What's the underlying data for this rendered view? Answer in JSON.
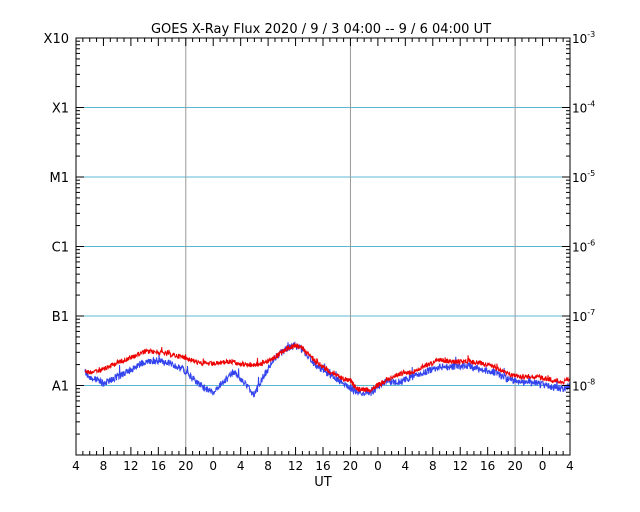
{
  "chart_data": {
    "type": "line",
    "title": "GOES X-Ray Flux   2020 / 9 / 3   04:00 --  9 / 6   04:00    UT",
    "xlabel": "UT",
    "ylabel": "",
    "x_start_hour": 4,
    "x_end_hour": 76,
    "x_tick_labels": [
      "4",
      "8",
      "12",
      "16",
      "20",
      "0",
      "4",
      "8",
      "12",
      "16",
      "20",
      "0",
      "4",
      "8",
      "12",
      "16",
      "20",
      "0",
      "4"
    ],
    "day_boundaries_hours": [
      20,
      44,
      68
    ],
    "y_scale": "log",
    "ylim": [
      1e-09,
      0.001
    ],
    "y_left_labels": [
      "X10",
      "X1",
      "M1",
      "C1",
      "B1",
      "A1"
    ],
    "y_right_labels": [
      {
        "base": "10",
        "exp": "-3"
      },
      {
        "base": "10",
        "exp": "-4"
      },
      {
        "base": "10",
        "exp": "-5"
      },
      {
        "base": "10",
        "exp": "-6"
      },
      {
        "base": "10",
        "exp": "-7"
      },
      {
        "base": "10",
        "exp": "-8"
      }
    ],
    "series": [
      {
        "name": "",
        "color": "#ee0000",
        "points": [
          [
            5.3,
            1.62e-08
          ],
          [
            6,
            1.55e-08
          ],
          [
            8,
            1.7e-08
          ],
          [
            10,
            2.14e-08
          ],
          [
            12,
            2.51e-08
          ],
          [
            14,
            3.09e-08
          ],
          [
            16,
            3.02e-08
          ],
          [
            18,
            2.75e-08
          ],
          [
            20,
            2.51e-08
          ],
          [
            22,
            2.09e-08
          ],
          [
            24,
            2.04e-08
          ],
          [
            26,
            2.19e-08
          ],
          [
            27,
            2.19e-08
          ],
          [
            29,
            1.95e-08
          ],
          [
            31,
            2.04e-08
          ],
          [
            33,
            2.57e-08
          ],
          [
            35,
            3.47e-08
          ],
          [
            36,
            3.72e-08
          ],
          [
            37,
            3.47e-08
          ],
          [
            39,
            2.19e-08
          ],
          [
            41,
            1.58e-08
          ],
          [
            43,
            1.23e-08
          ],
          [
            44,
            1.17e-08
          ],
          [
            45,
            8.9e-09
          ],
          [
            47,
            8.5e-09
          ],
          [
            48,
            1.02e-08
          ],
          [
            49,
            1.12e-08
          ],
          [
            49.3,
            1.2e-08
          ],
          [
            51,
            1.45e-08
          ],
          [
            53,
            1.55e-08
          ],
          [
            55,
            1.95e-08
          ],
          [
            57,
            2.34e-08
          ],
          [
            59,
            2.19e-08
          ],
          [
            61,
            2.24e-08
          ],
          [
            63,
            2.09e-08
          ],
          [
            65,
            1.86e-08
          ],
          [
            67,
            1.45e-08
          ],
          [
            69,
            1.35e-08
          ],
          [
            71,
            1.35e-08
          ],
          [
            73,
            1.23e-08
          ],
          [
            75,
            1.12e-08
          ],
          [
            76,
            1.23e-08
          ]
        ]
      },
      {
        "name": "",
        "color": "#3344ee",
        "points": [
          [
            5.3,
            1.55e-08
          ],
          [
            6,
            1.35e-08
          ],
          [
            8,
            1.07e-08
          ],
          [
            10,
            1.32e-08
          ],
          [
            12,
            1.7e-08
          ],
          [
            14,
            2.19e-08
          ],
          [
            16,
            2.29e-08
          ],
          [
            18,
            2.04e-08
          ],
          [
            20,
            1.62e-08
          ],
          [
            22,
            1.02e-08
          ],
          [
            24,
            7.8e-09
          ],
          [
            25,
            1.05e-08
          ],
          [
            26,
            1.23e-08
          ],
          [
            27,
            1.6e-08
          ],
          [
            29,
            9.5e-09
          ],
          [
            30,
            7.2e-09
          ],
          [
            31,
            1.2e-08
          ],
          [
            33,
            2.51e-08
          ],
          [
            35,
            3.55e-08
          ],
          [
            36,
            3.72e-08
          ],
          [
            37,
            3.31e-08
          ],
          [
            39,
            1.95e-08
          ],
          [
            41,
            1.41e-08
          ],
          [
            43,
            1.07e-08
          ],
          [
            44,
            9.3e-09
          ],
          [
            45,
            7.8e-09
          ],
          [
            47,
            7.9e-09
          ],
          [
            48,
            9.5e-09
          ],
          [
            49.3,
            1.15e-08
          ],
          [
            51,
            1.12e-08
          ],
          [
            53,
            1.32e-08
          ],
          [
            55,
            1.58e-08
          ],
          [
            57,
            1.86e-08
          ],
          [
            59,
            1.86e-08
          ],
          [
            61,
            1.91e-08
          ],
          [
            63,
            1.7e-08
          ],
          [
            65,
            1.55e-08
          ],
          [
            67,
            1.23e-08
          ],
          [
            69,
            1.1e-08
          ],
          [
            71,
            1.07e-08
          ],
          [
            73,
            9.8e-09
          ],
          [
            75,
            8.7e-09
          ],
          [
            76,
            1.05e-08
          ]
        ]
      }
    ]
  }
}
